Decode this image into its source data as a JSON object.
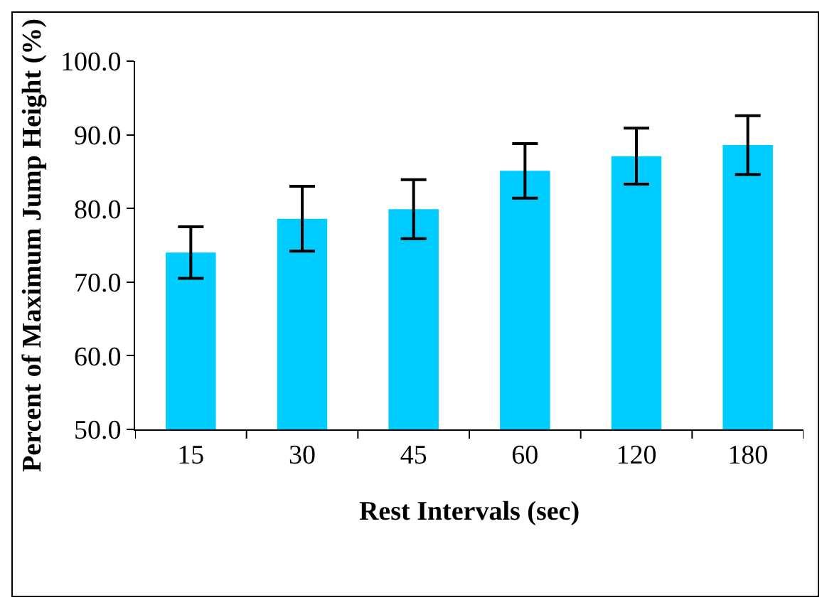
{
  "chart_data": {
    "type": "bar",
    "categories": [
      "15",
      "30",
      "45",
      "60",
      "120",
      "180"
    ],
    "values": [
      74.0,
      78.6,
      79.9,
      85.1,
      87.1,
      88.6
    ],
    "errors": [
      3.5,
      4.4,
      4.0,
      3.7,
      3.8,
      4.0
    ],
    "color": "#00ccff",
    "xlabel": "Rest Intervals (sec)",
    "ylabel": "Percent of Maximum Jump Height (%)",
    "ylim": [
      50,
      100
    ],
    "yticks": [
      {
        "value": 50,
        "label": "50.0"
      },
      {
        "value": 60,
        "label": "60.0"
      },
      {
        "value": 70,
        "label": "70.0"
      },
      {
        "value": 80,
        "label": "80.0"
      },
      {
        "value": 90,
        "label": "90.0"
      },
      {
        "value": 100,
        "label": "100.0"
      }
    ],
    "grid": false,
    "legend": false
  }
}
